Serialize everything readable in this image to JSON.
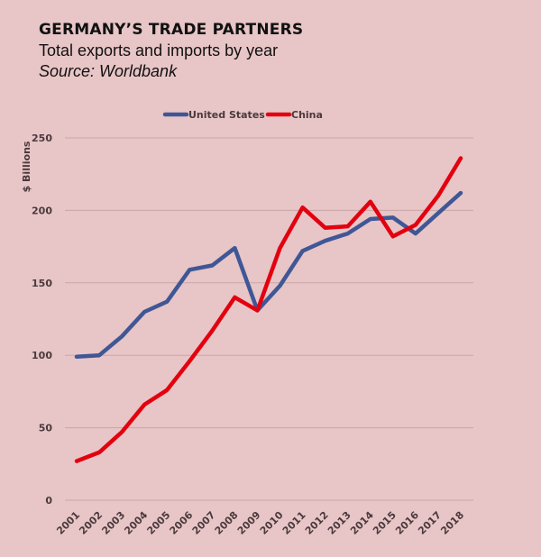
{
  "header": {
    "title": "GERMANY’S TRADE PARTNERS",
    "subtitle": "Total exports and imports by  year",
    "source": "Source: Worldbank"
  },
  "chart_data": {
    "type": "line",
    "title": "GERMANY’S TRADE PARTNERS",
    "subtitle": "Total exports and imports by year",
    "xlabel": "",
    "ylabel": "$ Billions",
    "ylim": [
      0,
      250
    ],
    "yticks": [
      0,
      50,
      100,
      150,
      200,
      250
    ],
    "grid": true,
    "legend_position": "top-center",
    "x": [
      "2001",
      "2002",
      "2003",
      "2004",
      "2005",
      "2006",
      "2007",
      "2008",
      "2009",
      "2010",
      "2011",
      "2012",
      "2013",
      "2014",
      "2015",
      "2016",
      "2017",
      "2018"
    ],
    "series": [
      {
        "name": "United States",
        "color": "#3f5796",
        "values": [
          99,
          100,
          113,
          130,
          137,
          159,
          162,
          174,
          131,
          148,
          172,
          179,
          184,
          194,
          195,
          184,
          198,
          212
        ]
      },
      {
        "name": "China",
        "color": "#e3000f",
        "values": [
          27,
          33,
          47,
          66,
          76,
          96,
          117,
          140,
          131,
          174,
          202,
          188,
          189,
          206,
          182,
          190,
          210,
          236
        ]
      }
    ]
  },
  "colors": {
    "background": "#e8c5c6",
    "gridline": "#c9a6a8",
    "tick_text": "#4a3a3d"
  }
}
